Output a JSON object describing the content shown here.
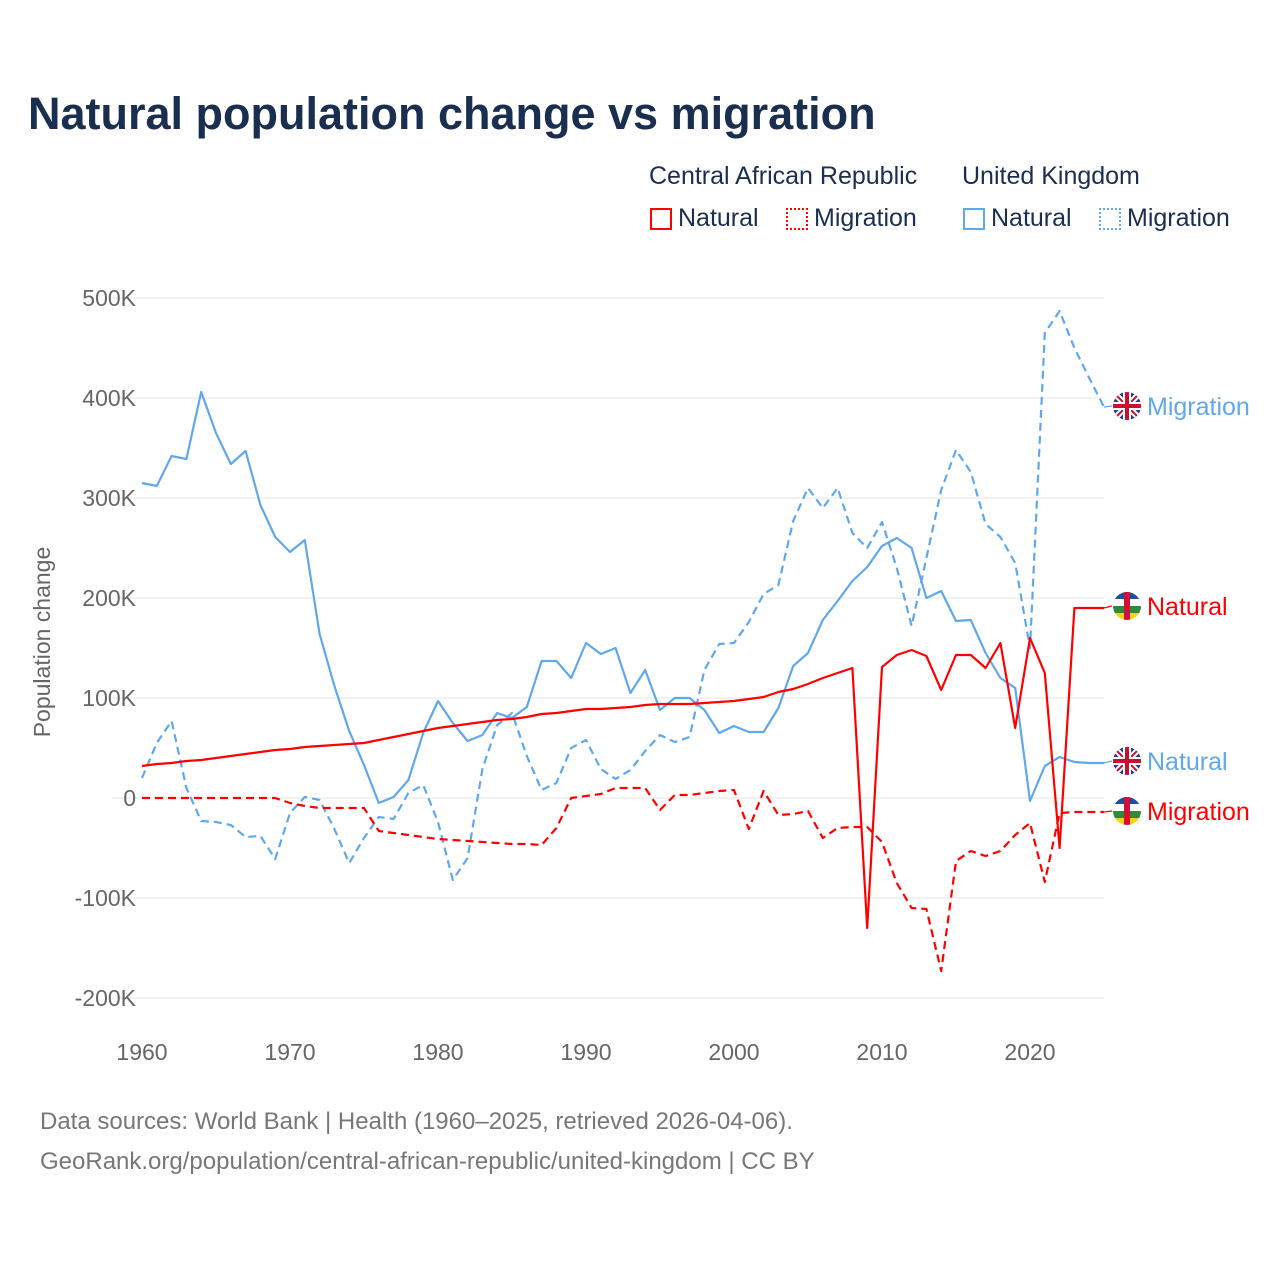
{
  "title": "Natural population change vs migration",
  "legend": {
    "groups": [
      {
        "name": "Central African Republic",
        "items": [
          "Natural",
          "Migration"
        ]
      },
      {
        "name": "United Kingdom",
        "items": [
          "Natural",
          "Migration"
        ]
      }
    ]
  },
  "colors": {
    "car": "#ff0000",
    "uk": "#5fa8ec",
    "grid": "#e6e6e6",
    "axis_text": "#666666"
  },
  "sources": [
    "Data sources: World Bank | Health (1960–2025, retrieved 2026-04-06).",
    "GeoRank.org/population/central-african-republic/united-kingdom | CC BY"
  ],
  "chart_data": {
    "type": "line",
    "title": "Natural population change vs migration",
    "xlabel": "",
    "ylabel": "Population change",
    "xlim": [
      1960,
      2025
    ],
    "ylim": [
      -200000,
      500000
    ],
    "xticks": [
      1960,
      1970,
      1980,
      1990,
      2000,
      2010,
      2020
    ],
    "xtick_labels": [
      "1960",
      "1970",
      "1980",
      "1990",
      "2000",
      "2010",
      "2020"
    ],
    "yticks": [
      500000,
      400000,
      300000,
      200000,
      100000,
      0,
      -100000,
      -200000
    ],
    "ytick_labels": [
      "500K",
      "400K",
      "300K",
      "200K",
      "100K",
      "0",
      "-100K",
      "-200K"
    ],
    "grid": true,
    "x_start": 1960,
    "units": "thousands",
    "series": [
      {
        "name": "United Kingdom Natural",
        "label": "Natural",
        "country": "uk",
        "dashed": false,
        "values": [
          315,
          312,
          342,
          339,
          406,
          365,
          334,
          347,
          293,
          261,
          246,
          258,
          164,
          112,
          67,
          33,
          -5,
          1,
          18,
          65,
          97,
          75,
          57,
          63,
          85,
          80,
          91,
          137,
          137,
          120,
          155,
          144,
          150,
          105,
          128,
          88,
          100,
          100,
          88,
          65,
          72,
          66,
          66,
          90,
          132,
          145,
          178,
          197,
          217,
          231,
          252,
          260,
          250,
          200,
          207,
          177,
          178,
          145,
          120,
          110,
          -3,
          32,
          41,
          36,
          35,
          35
        ]
      },
      {
        "name": "United Kingdom Migration",
        "label": "Migration",
        "country": "uk",
        "dashed": true,
        "values": [
          20,
          55,
          77,
          10,
          -23,
          -24,
          -27,
          -39,
          -38,
          -61,
          -15,
          1,
          -2,
          -31,
          -65,
          -40,
          -19,
          -21,
          5,
          13,
          -24,
          -82,
          -60,
          29,
          73,
          85,
          42,
          8,
          15,
          50,
          58,
          29,
          19,
          28,
          47,
          63,
          56,
          61,
          128,
          154,
          155,
          176,
          204,
          213,
          277,
          310,
          290,
          310,
          265,
          250,
          276,
          230,
          172,
          240,
          308,
          348,
          326,
          274,
          261,
          235,
          150,
          465,
          487,
          450,
          420,
          391
        ]
      },
      {
        "name": "Central African Republic Natural",
        "label": "Natural",
        "country": "car",
        "dashed": false,
        "values": [
          32,
          34,
          35,
          37,
          38,
          40,
          42,
          44,
          46,
          48,
          49,
          51,
          52,
          53,
          54,
          55,
          58,
          61,
          64,
          67,
          70,
          72,
          74,
          76,
          78,
          79,
          81,
          84,
          85,
          87,
          89,
          89,
          90,
          91,
          93,
          94,
          94,
          94,
          95,
          96,
          97,
          99,
          101,
          106,
          109,
          114,
          120,
          125,
          130,
          -130,
          131,
          143,
          148,
          142,
          108,
          143,
          143,
          130,
          155,
          70,
          160,
          125,
          -50,
          190,
          190,
          190
        ]
      },
      {
        "name": "Central African Republic Migration",
        "label": "Migration",
        "country": "car",
        "dashed": true,
        "values": [
          0,
          0,
          0,
          0,
          0,
          0,
          0,
          0,
          0,
          0,
          -5,
          -8,
          -10,
          -10,
          -10,
          -10,
          -33,
          -35,
          -37,
          -39,
          -41,
          -42,
          -43,
          -44,
          -45,
          -46,
          -46,
          -47,
          -30,
          0,
          2,
          4,
          10,
          10,
          10,
          -12,
          3,
          3,
          5,
          7,
          8,
          -31,
          7,
          -17,
          -16,
          -13,
          -40,
          -30,
          -29,
          -29,
          -44,
          -85,
          -110,
          -111,
          -173,
          -63,
          -53,
          -58,
          -53,
          -37,
          -25,
          -84,
          -15,
          -14,
          -14,
          -14
        ]
      }
    ]
  }
}
